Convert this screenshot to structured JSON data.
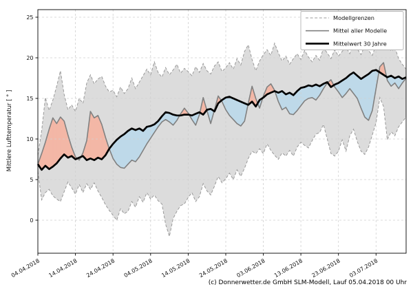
{
  "figure": {
    "y_axis_label": "Mittlere Lufttemperatur [ ° ]",
    "caption": "(c) Donnerwetter.de GmbH SLM-Modell, Lauf 05.04.2018 00 Uhr"
  },
  "colors": {
    "band_fill": "#dcdcdc",
    "band_edge": "#999999",
    "model_mean_line": "#808080",
    "climate_line": "#000000",
    "warm_fill": "#f3b7a6",
    "cold_fill": "#bed9e9",
    "grid": "#cfcfcf",
    "frame": "#000000",
    "legend_border": "#b3b3b3"
  },
  "chart_data": {
    "type": "line",
    "title": "",
    "xlabel": "",
    "ylabel": "Mittlere Lufttemperatur [ ° ]",
    "x_unit": "days since 04.04.2018, daily samples (04.04.2018 - 11.07.2018)",
    "x_tick_positions": [
      0,
      10,
      20,
      30,
      40,
      50,
      60,
      70,
      80,
      90
    ],
    "x_tick_labels": [
      "04.04.2018",
      "14.04.2018",
      "24.04.2018",
      "04.05.2018",
      "14.05.2018",
      "24.05.2018",
      "03.06.2018",
      "13.06.2018",
      "23.06.2018",
      "03.07.2018"
    ],
    "y_ticks": [
      0,
      5,
      10,
      15,
      20,
      25
    ],
    "ylim": [
      -4.1,
      25.9
    ],
    "grid": "dashed, both axes",
    "legend_position": "top right inside",
    "legend_entries": [
      "Modellgrenzen",
      "Mittel aller Modelle",
      "Mittelwert 30 Jahre"
    ],
    "fills": {
      "band": {
        "between": [
          "model_upper_bound",
          "model_lower_bound"
        ],
        "meaning": "Modellgrenzen (spread of all models)"
      },
      "warm_anomaly": {
        "where": "Mittel aller Modelle > Mittelwert 30 Jahre",
        "color_meaning": "warmer than 30-year mean"
      },
      "cold_anomaly": {
        "where": "Mittel aller Modelle < Mittelwert 30 Jahre",
        "color_meaning": "colder than 30-year mean"
      }
    },
    "series": [
      {
        "name": "Modellgrenzen (obere Grenze)",
        "role": "model_upper_bound",
        "style": "dashed gray band edge",
        "values": [
          8.0,
          11.0,
          15.1,
          13.5,
          14.8,
          16.5,
          18.4,
          15.5,
          13.6,
          14.2,
          13.4,
          15.0,
          14.4,
          16.9,
          17.9,
          16.8,
          17.4,
          17.7,
          16.5,
          15.8,
          16.0,
          15.2,
          16.4,
          15.6,
          16.2,
          17.5,
          16.2,
          17.0,
          17.8,
          18.6,
          17.9,
          19.5,
          18.2,
          17.6,
          18.8,
          17.9,
          18.5,
          19.2,
          18.1,
          18.7,
          18.3,
          17.8,
          18.9,
          18.2,
          19.3,
          18.4,
          18.0,
          19.0,
          19.5,
          18.3,
          18.8,
          19.4,
          18.6,
          19.9,
          19.1,
          20.8,
          21.6,
          19.8,
          18.4,
          19.6,
          20.4,
          21.0,
          20.3,
          21.8,
          20.6,
          19.6,
          20.2,
          19.2,
          19.9,
          20.5,
          19.8,
          20.9,
          20.1,
          19.5,
          20.3,
          19.7,
          21.2,
          20.6,
          19.9,
          21.0,
          20.2,
          20.8,
          21.3,
          20.5,
          22.0,
          21.1,
          20.4,
          21.5,
          20.9,
          20.3,
          21.6,
          22.0,
          21.4,
          22.0,
          20.8,
          21.3,
          19.9,
          19.2,
          18.6
        ]
      },
      {
        "name": "Modellgrenzen (untere Grenze)",
        "role": "model_lower_bound",
        "style": "dashed gray band edge",
        "values": [
          6.0,
          2.5,
          3.4,
          3.8,
          3.0,
          2.6,
          2.3,
          3.5,
          4.7,
          4.0,
          3.2,
          4.4,
          3.4,
          4.5,
          3.8,
          4.6,
          3.6,
          2.8,
          1.9,
          1.2,
          0.6,
          0.0,
          1.4,
          0.8,
          1.1,
          2.3,
          1.6,
          2.9,
          2.2,
          3.4,
          2.6,
          3.1,
          2.4,
          2.0,
          -0.5,
          -2.0,
          0.2,
          1.1,
          1.8,
          2.0,
          2.8,
          3.4,
          2.3,
          2.9,
          4.5,
          3.6,
          3.1,
          4.2,
          5.4,
          4.6,
          5.1,
          5.8,
          5.0,
          6.2,
          5.4,
          6.4,
          7.6,
          8.5,
          8.2,
          8.8,
          8.2,
          9.4,
          8.6,
          8.0,
          7.5,
          8.3,
          7.9,
          8.6,
          7.9,
          9.0,
          9.6,
          9.2,
          8.9,
          9.8,
          10.6,
          10.8,
          11.8,
          10.0,
          8.2,
          7.9,
          8.5,
          9.9,
          8.5,
          10.4,
          11.2,
          9.7,
          8.5,
          8.1,
          9.0,
          10.5,
          12.0,
          15.1,
          14.0,
          9.9,
          10.9,
          10.4,
          11.5,
          12.1,
          12.7
        ]
      },
      {
        "name": "Mittel aller Modelle",
        "role": "model_mean",
        "style": "solid gray line",
        "values": [
          6.9,
          8.2,
          9.6,
          11.2,
          12.6,
          11.9,
          12.7,
          12.2,
          10.5,
          9.0,
          7.8,
          7.4,
          8.3,
          9.8,
          13.4,
          12.6,
          12.9,
          11.8,
          10.2,
          8.8,
          7.6,
          6.9,
          6.5,
          6.4,
          6.9,
          7.4,
          7.2,
          7.8,
          8.6,
          9.4,
          10.1,
          10.8,
          11.5,
          12.1,
          12.4,
          12.1,
          11.7,
          12.3,
          13.1,
          13.8,
          13.2,
          12.4,
          11.7,
          13.0,
          15.1,
          13.5,
          11.9,
          13.6,
          15.3,
          14.6,
          13.6,
          12.9,
          12.4,
          11.9,
          11.6,
          12.2,
          14.4,
          16.5,
          15.0,
          13.8,
          15.3,
          16.4,
          16.8,
          16.0,
          14.6,
          13.6,
          13.9,
          13.1,
          13.0,
          13.5,
          14.1,
          14.7,
          15.0,
          15.1,
          14.8,
          15.4,
          16.2,
          16.9,
          17.3,
          16.4,
          15.8,
          15.1,
          15.6,
          16.2,
          15.6,
          15.0,
          13.8,
          12.7,
          12.3,
          13.5,
          16.2,
          18.9,
          19.4,
          17.2,
          16.5,
          16.9,
          16.2,
          16.9,
          17.5
        ]
      },
      {
        "name": "Mittelwert 30 Jahre",
        "role": "climate_mean_30y",
        "style": "thick black line",
        "values": [
          6.9,
          6.2,
          6.7,
          6.3,
          6.6,
          7.0,
          7.6,
          8.1,
          7.7,
          7.9,
          7.5,
          7.7,
          7.9,
          7.4,
          7.6,
          7.4,
          7.7,
          7.5,
          8.0,
          8.8,
          9.4,
          9.9,
          10.3,
          10.6,
          11.0,
          11.3,
          11.1,
          11.3,
          11.0,
          11.5,
          11.6,
          11.8,
          12.2,
          12.8,
          13.3,
          13.2,
          13.0,
          12.9,
          12.9,
          13.0,
          13.0,
          12.9,
          13.1,
          13.3,
          13.0,
          13.6,
          13.7,
          13.4,
          14.4,
          14.8,
          15.1,
          15.2,
          15.0,
          14.8,
          14.6,
          14.4,
          14.2,
          14.6,
          14.0,
          14.8,
          15.1,
          15.5,
          15.7,
          15.9,
          15.7,
          15.9,
          15.5,
          15.7,
          15.4,
          15.9,
          16.3,
          16.4,
          16.6,
          16.5,
          16.7,
          16.5,
          16.8,
          17.0,
          16.4,
          16.7,
          16.9,
          17.2,
          17.5,
          17.9,
          18.2,
          17.8,
          17.4,
          17.7,
          18.0,
          18.4,
          18.5,
          18.2,
          17.9,
          17.6,
          17.8,
          17.5,
          17.7,
          17.4,
          17.6
        ]
      }
    ]
  }
}
